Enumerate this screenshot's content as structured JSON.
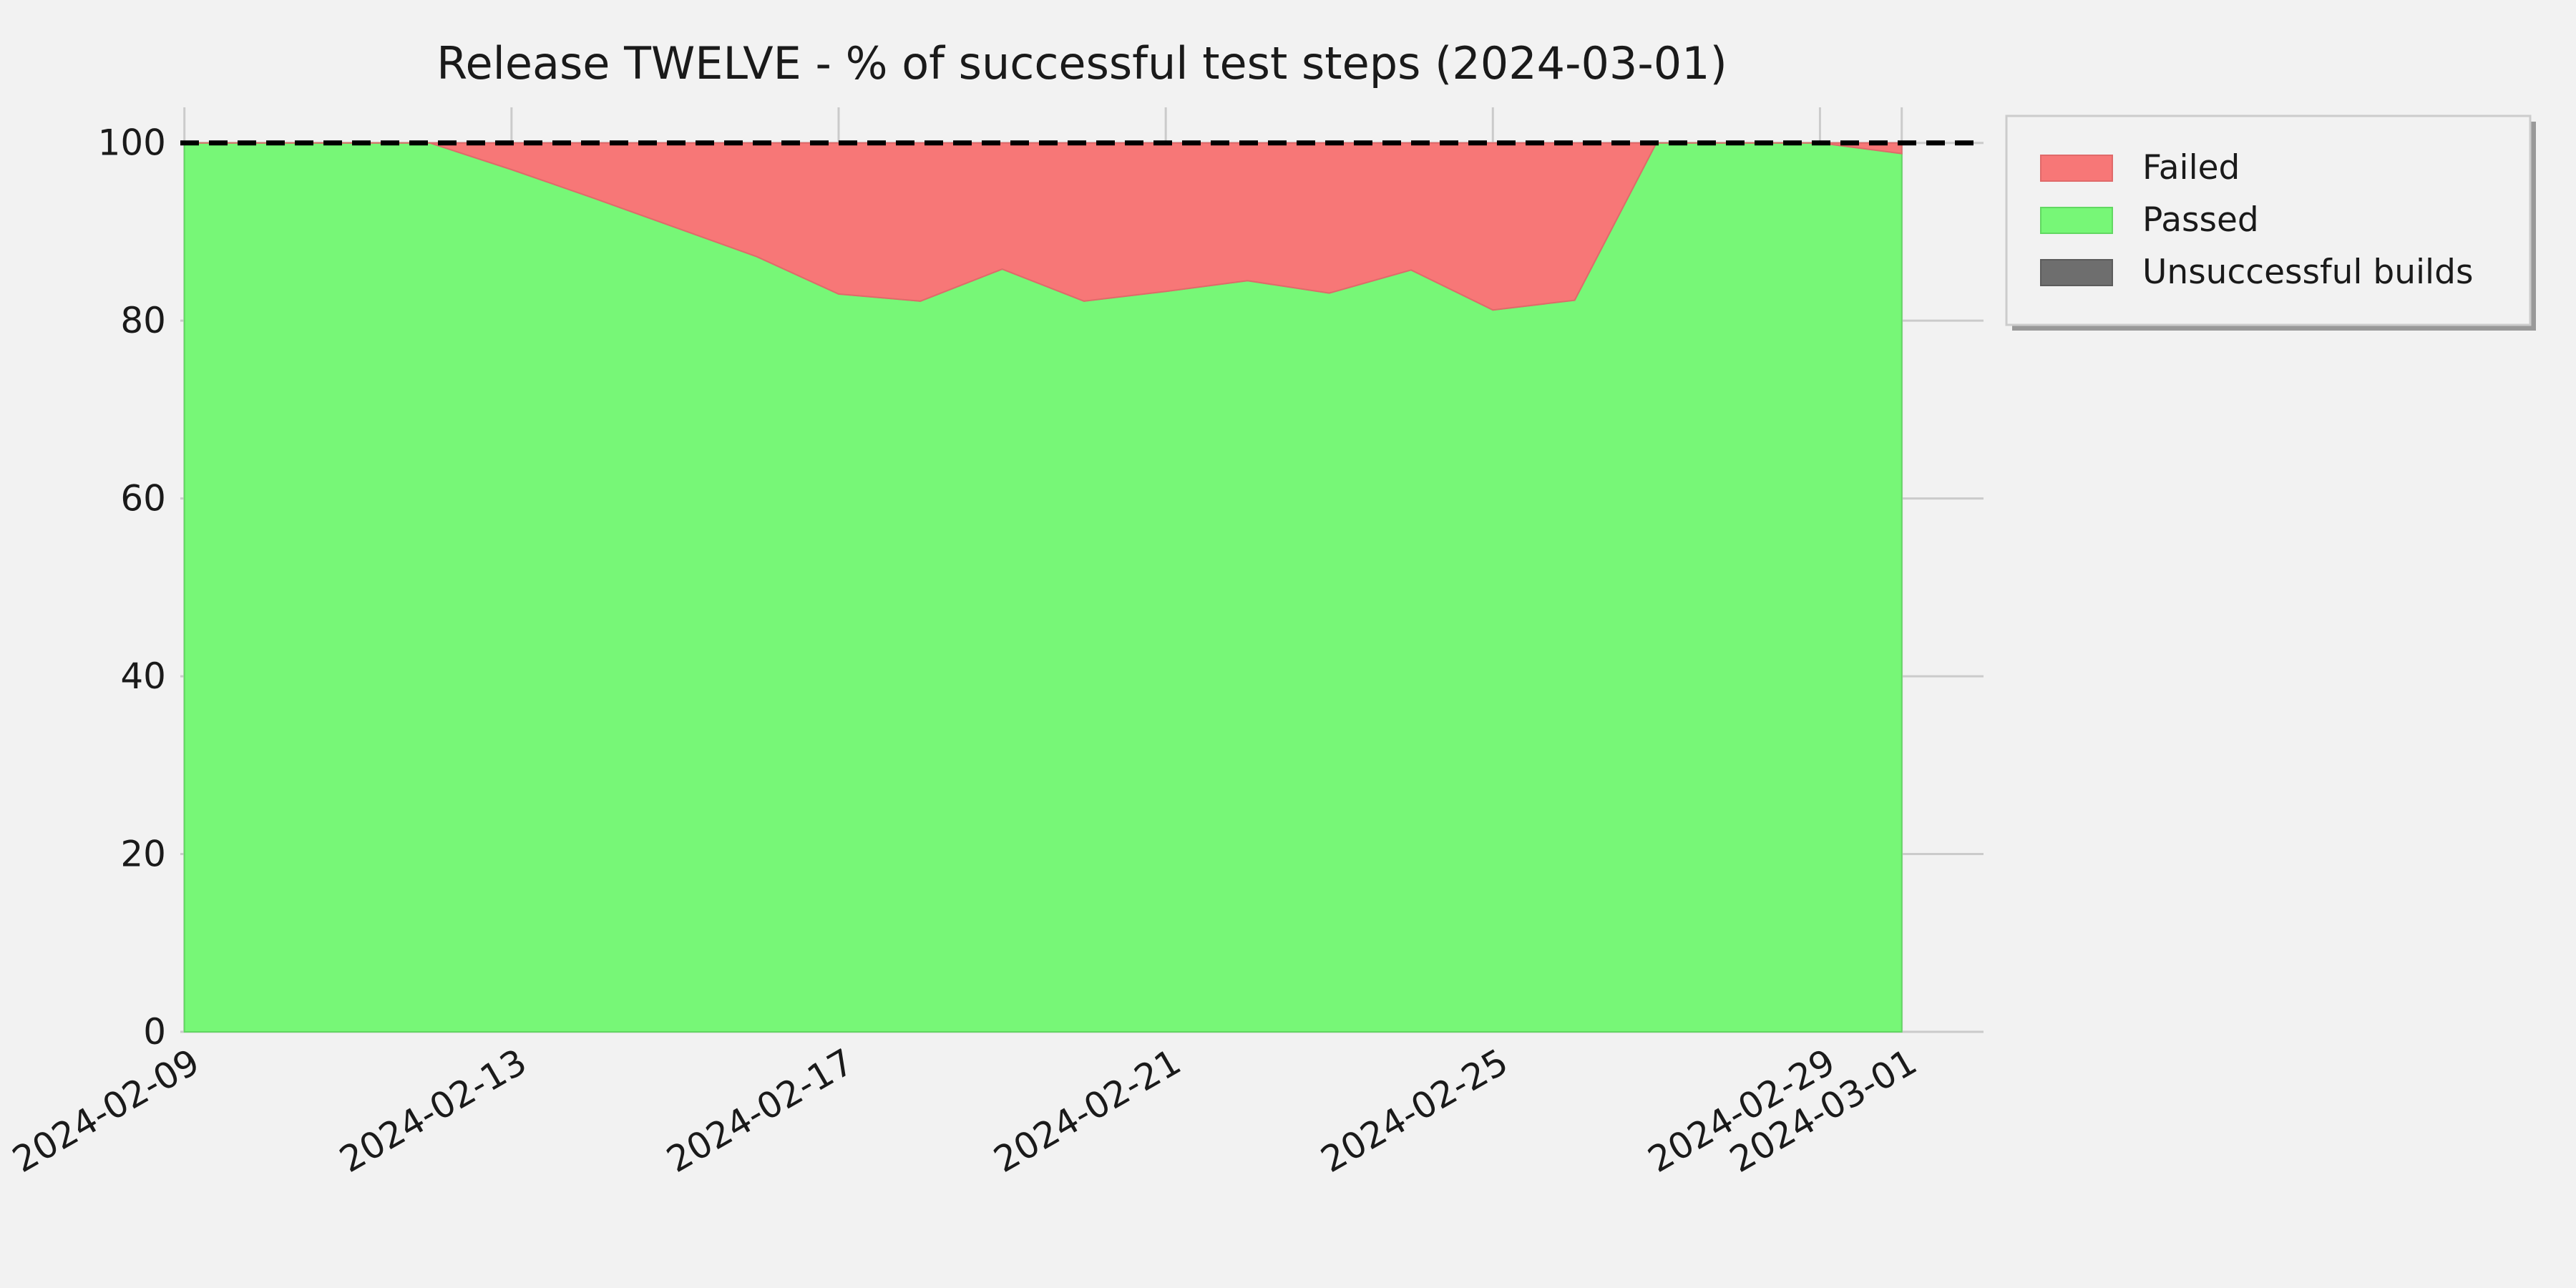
{
  "chart_data": {
    "type": "area",
    "title": "Release TWELVE - % of successful test steps (2024-03-01)",
    "xlabel": "",
    "ylabel": "",
    "x_ticks": [
      "2024-02-09",
      "2024-02-13",
      "2024-02-17",
      "2024-02-21",
      "2024-02-25",
      "2024-02-29",
      "2024-03-01"
    ],
    "y_ticks": [
      0,
      20,
      40,
      60,
      80,
      100
    ],
    "xlim": [
      "2024-02-09",
      "2024-03-02"
    ],
    "ylim": [
      0,
      104
    ],
    "grid": true,
    "legend_position": "outside-top-right",
    "reference_line": {
      "y": 100,
      "style": "dashed",
      "color": "#000000"
    },
    "x": [
      "2024-02-09",
      "2024-02-10",
      "2024-02-11",
      "2024-02-12",
      "2024-02-13",
      "2024-02-14",
      "2024-02-15",
      "2024-02-16",
      "2024-02-17",
      "2024-02-18",
      "2024-02-19",
      "2024-02-20",
      "2024-02-21",
      "2024-02-22",
      "2024-02-23",
      "2024-02-24",
      "2024-02-25",
      "2024-02-26",
      "2024-02-27",
      "2024-02-28",
      "2024-02-29",
      "2024-03-01"
    ],
    "series": [
      {
        "name": "Passed",
        "color": "#77f777",
        "values": [
          100,
          100,
          100,
          100,
          97,
          93.8,
          90.5,
          87.2,
          83,
          82.2,
          85.8,
          82.2,
          83.3,
          84.5,
          83.1,
          85.7,
          81.2,
          82.3,
          100,
          100,
          100,
          98.8
        ]
      },
      {
        "name": "Failed",
        "color": "#f77777",
        "values": [
          0,
          0,
          0,
          0,
          3,
          6.2,
          9.5,
          12.8,
          17,
          17.8,
          14.2,
          17.8,
          16.7,
          15.5,
          16.9,
          14.3,
          18.8,
          17.7,
          0,
          0,
          0,
          1.2
        ]
      },
      {
        "name": "Unsuccessful builds",
        "color": "#6e6e6e",
        "values": [
          0,
          0,
          0,
          0,
          0,
          0,
          0,
          0,
          0,
          0,
          0,
          0,
          0,
          0,
          0,
          0,
          0,
          0,
          0,
          0,
          0,
          0
        ]
      }
    ],
    "legend": [
      "Failed",
      "Passed",
      "Unsuccessful builds"
    ]
  }
}
